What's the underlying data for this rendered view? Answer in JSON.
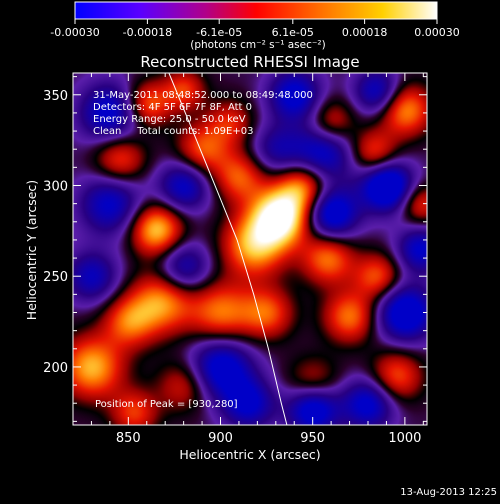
{
  "colorbar": {
    "tick_labels": [
      "-0.00030",
      "-0.00018",
      "-6.1e-05",
      "6.1e-05",
      "0.00018",
      "0.00030"
    ],
    "tick_values": [
      -0.0003,
      -0.00018,
      -6.1e-05,
      6.1e-05,
      0.00018,
      0.0003
    ],
    "range": [
      -0.0003,
      0.0003
    ],
    "units": "(photons cm⁻² s⁻¹ asec⁻²)",
    "colors": [
      "#0000ff",
      "#7a00ff",
      "#c000a0",
      "#ff0000",
      "#ff8800",
      "#ffff00",
      "#ffffff"
    ]
  },
  "chart_data": {
    "type": "heatmap",
    "title": "Reconstructed RHESSI Image",
    "xlabel": "Heliocentric X (arcsec)",
    "ylabel": "Heliocentric Y (arcsec)",
    "xlim": [
      820,
      1012
    ],
    "ylim": [
      168,
      362
    ],
    "xticks": [
      850,
      900,
      950,
      1000
    ],
    "yticks": [
      200,
      250,
      300,
      350
    ],
    "annotations": {
      "time_range": "31-May-2011 08:48:52.000 to 08:49:48.000",
      "detectors": "Detectors: 4F 5F 6F 7F 8F, Att 0",
      "energy": "Energy Range: 25.0 - 50.0 keV",
      "method": "Clean     Total counts: 1.09E+03",
      "peak": "Position of Peak = [930,280]"
    },
    "peak_position": [
      930,
      280
    ],
    "limb_curve": [
      [
        872,
        362
      ],
      [
        885,
        330
      ],
      [
        897,
        300
      ],
      [
        909,
        270
      ],
      [
        918,
        240
      ],
      [
        926,
        210
      ],
      [
        933,
        180
      ],
      [
        936,
        168
      ]
    ],
    "blobs": [
      [
        932,
        283,
        1.6,
        11
      ],
      [
        918,
        267,
        1.1,
        12
      ],
      [
        945,
        300,
        1.0,
        10
      ],
      [
        910,
        305,
        0.8,
        10
      ],
      [
        865,
        276,
        1.2,
        10
      ],
      [
        868,
        236,
        1.0,
        12
      ],
      [
        900,
        230,
        0.9,
        12
      ],
      [
        925,
        230,
        0.8,
        10
      ],
      [
        890,
        320,
        0.8,
        10
      ],
      [
        845,
        315,
        0.8,
        10
      ],
      [
        830,
        200,
        1.1,
        12
      ],
      [
        850,
        225,
        0.8,
        10
      ],
      [
        860,
        345,
        0.9,
        9
      ],
      [
        880,
        353,
        0.7,
        8
      ],
      [
        905,
        335,
        0.6,
        9
      ],
      [
        958,
        260,
        0.9,
        10
      ],
      [
        970,
        228,
        0.9,
        10
      ],
      [
        985,
        250,
        0.8,
        9
      ],
      [
        1000,
        342,
        1.0,
        10
      ],
      [
        983,
        318,
        0.8,
        9
      ],
      [
        995,
        195,
        0.8,
        10
      ],
      [
        950,
        190,
        0.7,
        10
      ],
      [
        960,
        335,
        0.7,
        9
      ],
      [
        880,
        190,
        0.6,
        10
      ],
      [
        1008,
        290,
        0.7,
        8
      ],
      [
        853,
        175,
        0.7,
        9
      ],
      [
        960,
        285,
        -1.2,
        10
      ],
      [
        990,
        300,
        -1.4,
        10
      ],
      [
        1000,
        230,
        -1.2,
        11
      ],
      [
        955,
        318,
        -1.0,
        12
      ],
      [
        900,
        200,
        -1.1,
        12
      ],
      [
        880,
        255,
        -0.8,
        10
      ],
      [
        950,
        178,
        -1.3,
        10
      ],
      [
        980,
        180,
        -1.0,
        10
      ],
      [
        940,
        350,
        -1.0,
        10
      ],
      [
        985,
        352,
        -0.9,
        9
      ],
      [
        840,
        290,
        -0.9,
        12
      ],
      [
        830,
        250,
        -0.8,
        10
      ],
      [
        840,
        340,
        -1.0,
        12
      ],
      [
        880,
        300,
        -0.9,
        10
      ],
      [
        915,
        180,
        -0.9,
        10
      ],
      [
        1008,
        265,
        -0.9,
        9
      ],
      [
        930,
        320,
        -0.6,
        10
      ]
    ]
  },
  "footer": {
    "date": "13-Aug-2013 12:25"
  }
}
